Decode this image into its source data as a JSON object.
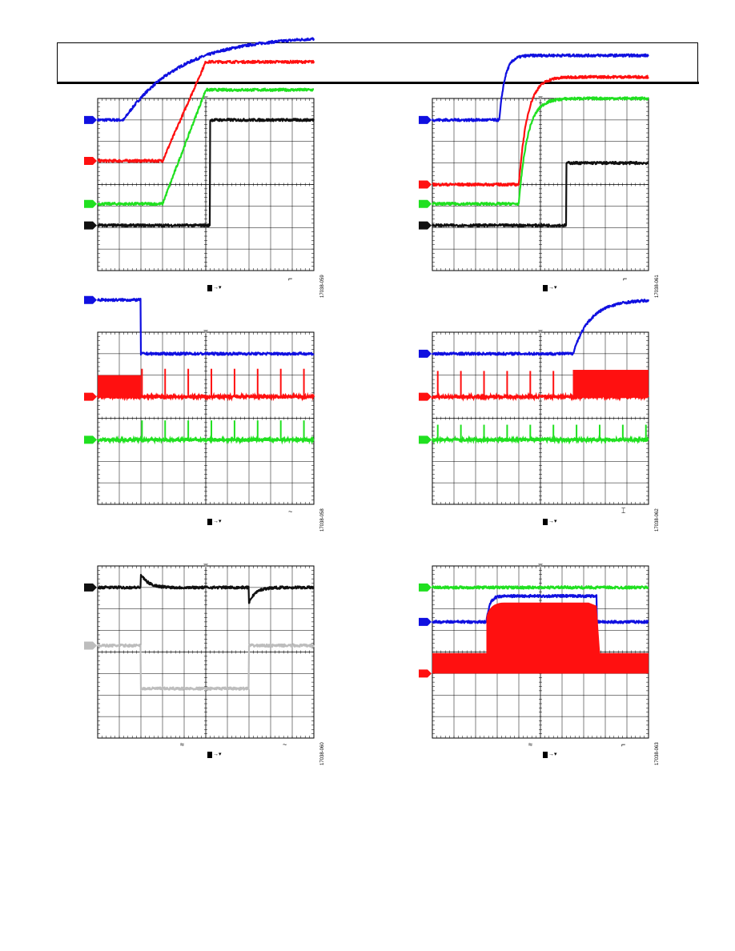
{
  "colors": {
    "ch_blue": "#1010e0",
    "ch_red": "#ff1010",
    "ch_green": "#20e020",
    "ch_black": "#101010",
    "ch_gray": "#bdbdbd",
    "grid": "#000000",
    "trigger_marker": "#9a9a9a"
  },
  "figure_ids": [
    "17038-059",
    "17038-061",
    "17038-058",
    "17038-062",
    "17038-060",
    "17038-063"
  ],
  "scopes": [
    {
      "id": "scope-1",
      "traces": [
        {
          "channel": "blue",
          "shape": "ramp_exp",
          "from": 3.0,
          "to": 6.9,
          "start": 1.2,
          "tau": 2.6
        },
        {
          "channel": "red",
          "shape": "ramp",
          "from": 1.1,
          "to": 5.7,
          "start": 3.0,
          "end": 5.0
        },
        {
          "channel": "green",
          "shape": "ramp",
          "from": -0.9,
          "to": 4.4,
          "start": 3.0,
          "end": 5.0
        },
        {
          "channel": "black",
          "shape": "step",
          "from": -1.9,
          "to": 3.0,
          "at": 5.2
        }
      ]
    },
    {
      "id": "scope-2",
      "traces": [
        {
          "channel": "blue",
          "shape": "ramp_exp",
          "from": 3.0,
          "to": 6.0,
          "start": 3.1,
          "tau": 0.25
        },
        {
          "channel": "red",
          "shape": "ramp_exp",
          "from": 0.0,
          "to": 5.0,
          "start": 4.0,
          "tau": 0.4
        },
        {
          "channel": "green",
          "shape": "ramp_exp",
          "from": -0.9,
          "to": 4.0,
          "start": 4.0,
          "tau": 0.4
        },
        {
          "channel": "black",
          "shape": "step",
          "from": -1.9,
          "to": 1.0,
          "at": 6.2
        }
      ]
    },
    {
      "id": "scope-3",
      "traces": [
        {
          "channel": "blue",
          "shape": "step",
          "from": 5.5,
          "to": 3.0,
          "at": 2.0
        },
        {
          "channel": "red",
          "shape": "burst_then_spikes",
          "base": 1.0,
          "height": 1.0,
          "end": 2.0,
          "period": 1.07,
          "spike_h": 1.3
        },
        {
          "channel": "green",
          "shape": "spikes",
          "base": -1.0,
          "start": 2.0,
          "period": 1.07,
          "spike_h": 0.9
        }
      ]
    },
    {
      "id": "scope-4",
      "traces": [
        {
          "channel": "blue",
          "shape": "ramp_exp",
          "from": 3.0,
          "to": 5.5,
          "start": 6.5,
          "tau": 0.8
        },
        {
          "channel": "red",
          "shape": "spikes_then_burst",
          "base": 1.0,
          "height": 1.25,
          "start": 6.5,
          "period": 1.07,
          "spike_h": 1.2
        },
        {
          "channel": "green",
          "shape": "spikes",
          "base": -1.0,
          "start": 0.2,
          "period": 1.07,
          "spike_h": 0.7
        }
      ]
    },
    {
      "id": "scope-5",
      "traces": [
        {
          "channel": "black",
          "shape": "dip_pulse",
          "base": 3.0,
          "at1": 2.0,
          "at2": 7.0
        },
        {
          "channel": "gray",
          "shape": "low_pulse",
          "from": 0.3,
          "to": -1.7,
          "at1": 2.0,
          "at2": 7.0
        }
      ]
    },
    {
      "id": "scope-6",
      "traces": [
        {
          "channel": "green",
          "shape": "flat",
          "level": 3.0
        },
        {
          "channel": "blue",
          "shape": "pulse",
          "from": 1.4,
          "to": 2.6,
          "at1": 2.5,
          "at2": 7.6
        },
        {
          "channel": "red",
          "shape": "fat_pulse",
          "low": -1.0,
          "high": -0.1,
          "band_lo": -1.0,
          "band_hi": 0.7,
          "at1": 2.5,
          "at2": 7.6
        }
      ]
    }
  ]
}
